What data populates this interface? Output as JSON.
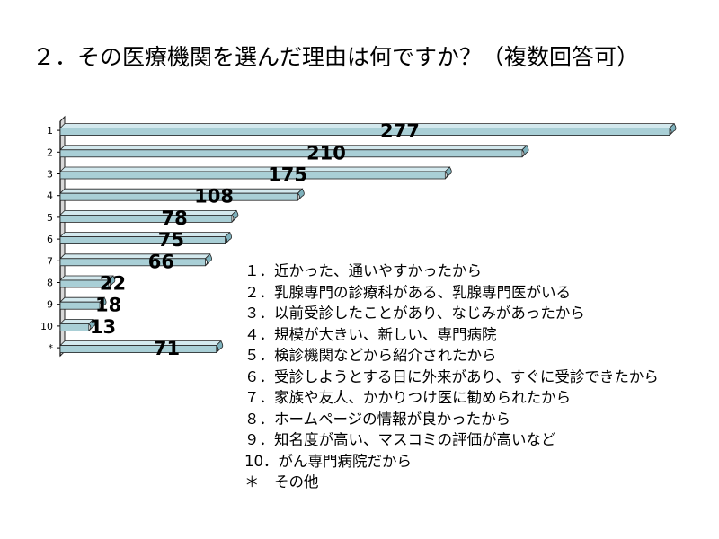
{
  "chart_data": {
    "type": "bar",
    "orientation": "horizontal",
    "title": "２．その医療機関を選んだ理由は何ですか？（複数回答可）",
    "categories": [
      "1",
      "2",
      "3",
      "4",
      "5",
      "6",
      "7",
      "8",
      "9",
      "10",
      "*"
    ],
    "values": [
      277,
      210,
      175,
      108,
      78,
      75,
      66,
      22,
      18,
      13,
      71
    ],
    "xlim": [
      0,
      277
    ],
    "grid": false,
    "bar_color": "#a9cfd6",
    "legend": [
      "１．近かった、通いやすかったから",
      "２．乳腺専門の診療科がある、乳腺専門医がいる",
      "３．以前受診したことがあり、なじみがあったから",
      "４．規模が大きい、新しい、専門病院",
      "５．検診機関などから紹介されたから",
      "６．受診しようとする日に外来があり、すぐに受診できたから",
      "７．家族や友人、かかりつけ医に勧められたから",
      "８．ホームページの情報が良かったから",
      "９．知名度が高い、マスコミの評価が高いなど",
      "10．がん専門病院だから",
      "＊　その他"
    ]
  }
}
